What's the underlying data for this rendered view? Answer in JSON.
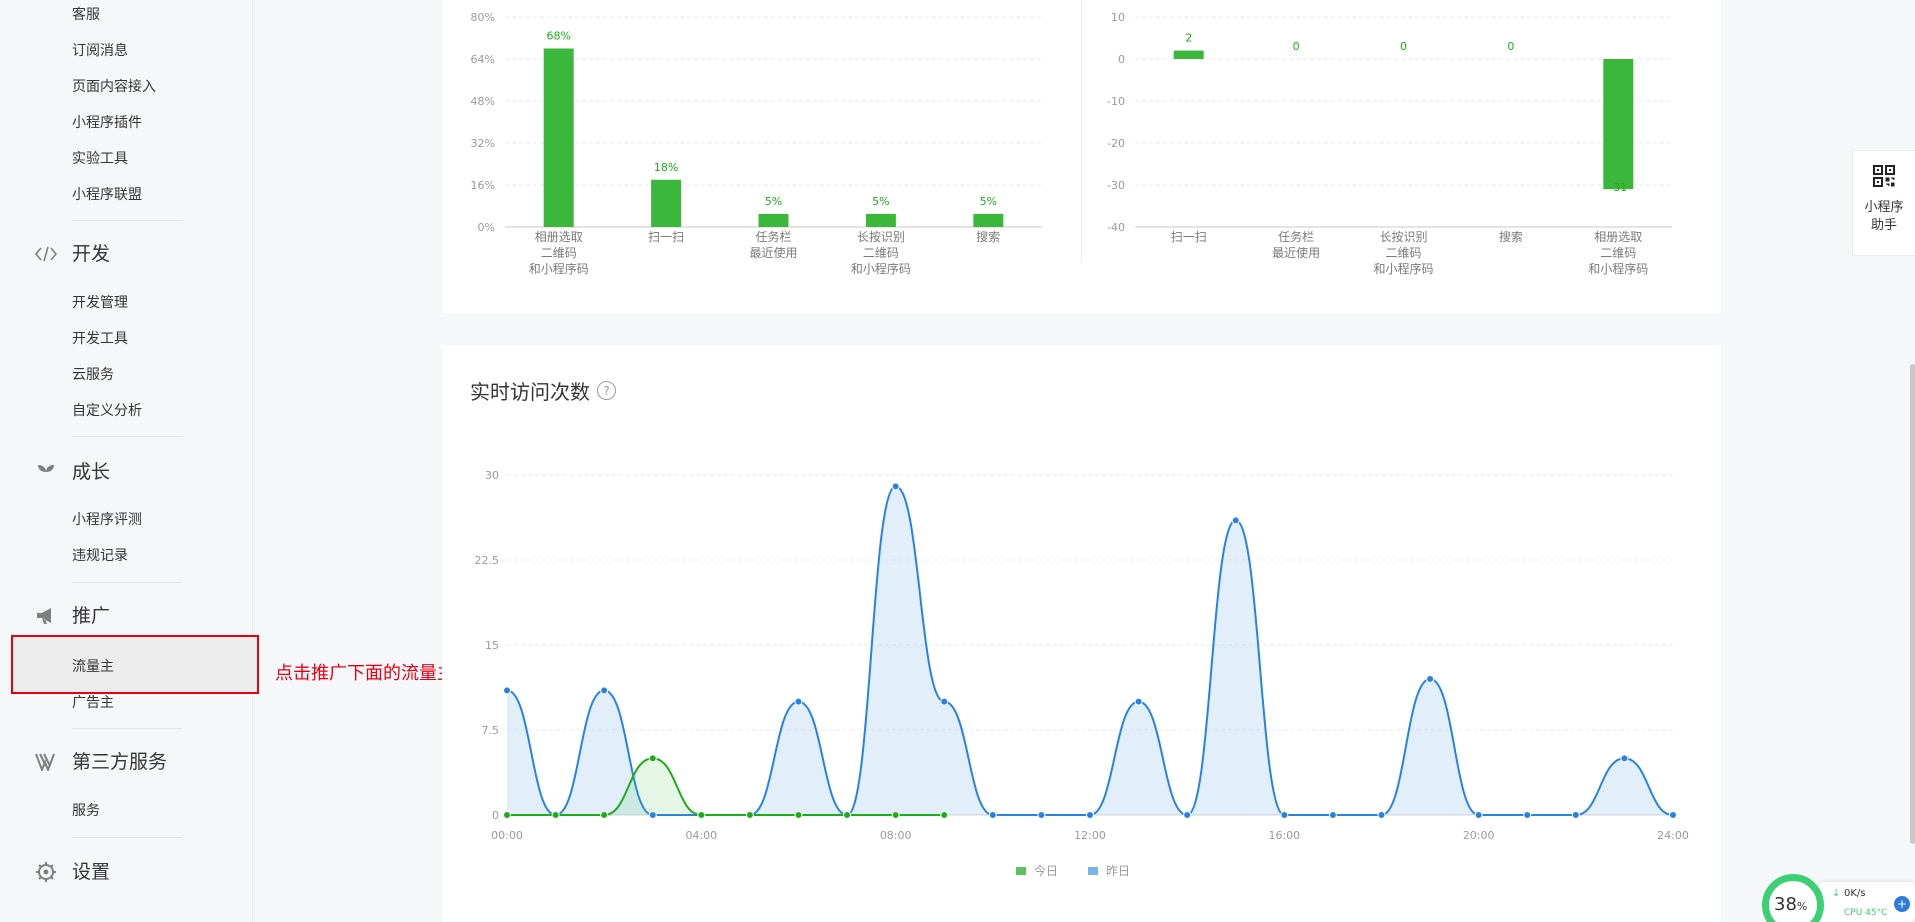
{
  "sidebar": {
    "items_top": [
      {
        "label": "客服"
      },
      {
        "label": "订阅消息"
      },
      {
        "label": "页面内容接入"
      },
      {
        "label": "小程序插件"
      },
      {
        "label": "实验工具"
      },
      {
        "label": "小程序联盟"
      }
    ],
    "groups": [
      {
        "label": "开发",
        "icon": "code-icon",
        "items": [
          {
            "label": "开发管理"
          },
          {
            "label": "开发工具"
          },
          {
            "label": "云服务"
          },
          {
            "label": "自定义分析"
          }
        ]
      },
      {
        "label": "成长",
        "icon": "sprout-icon",
        "items": [
          {
            "label": "小程序评测"
          },
          {
            "label": "违规记录"
          }
        ]
      },
      {
        "label": "推广",
        "icon": "megaphone-icon",
        "items": [
          {
            "label": "流量主"
          },
          {
            "label": "广告主"
          }
        ]
      },
      {
        "label": "第三方服务",
        "icon": "third-party-icon",
        "items": [
          {
            "label": "服务"
          }
        ]
      },
      {
        "label": "设置",
        "icon": "gear-icon",
        "items": []
      }
    ],
    "active_item": "流量主"
  },
  "annotation": {
    "text": "点击推广下面的流量主",
    "color": "#e60012"
  },
  "colors": {
    "accent_green": "#3bb83b",
    "today_green": "#1aad19",
    "yesterday_blue": "#2782e3",
    "yesterday_fill": "#e6f1fc"
  },
  "realtime": {
    "title": "实时访问次数",
    "help": "?"
  },
  "legend": [
    {
      "label": "今日",
      "color": "#5ac35a"
    },
    {
      "label": "昨日",
      "color": "#7ab5ee"
    }
  ],
  "helper": {
    "label": "小程序助手",
    "icon": "qrcode-icon"
  },
  "monitor": {
    "percent": "38",
    "unit": "%",
    "speed": "0K/s",
    "cpu": "CPU 45°C",
    "plus": "+"
  },
  "chart_data": [
    {
      "type": "bar",
      "categories": [
        [
          "相册选取",
          "二维码",
          "和小程序码"
        ],
        [
          "扫一扫"
        ],
        [
          "任务栏",
          "最近使用"
        ],
        [
          "长按识别",
          "二维码",
          "和小程序码"
        ],
        [
          "搜索"
        ]
      ],
      "values": [
        68,
        18,
        5,
        5,
        5
      ],
      "data_labels": [
        "68%",
        "18%",
        "5%",
        "5%",
        "5%"
      ],
      "yticks": [
        "0%",
        "16%",
        "32%",
        "48%",
        "64%",
        "80%"
      ],
      "ylim": [
        0,
        80
      ]
    },
    {
      "type": "bar",
      "categories": [
        [
          "扫一扫"
        ],
        [
          "任务栏",
          "最近使用"
        ],
        [
          "长按识别",
          "二维码",
          "和小程序码"
        ],
        [
          "搜索"
        ],
        [
          "相册选取",
          "二维码",
          "和小程序码"
        ]
      ],
      "values": [
        2,
        0,
        0,
        0,
        -31
      ],
      "data_labels": [
        "2",
        "0",
        "0",
        "0",
        "-31"
      ],
      "yticks": [
        "10",
        "0",
        "-10",
        "-20",
        "-30",
        "-40"
      ],
      "ylim": [
        -40,
        10
      ]
    },
    {
      "type": "area",
      "x_ticks": [
        "00:00",
        "04:00",
        "08:00",
        "12:00",
        "16:00",
        "20:00",
        "24:00"
      ],
      "yticks": [
        "0",
        "7.5",
        "15",
        "22.5",
        "30"
      ],
      "ylim": [
        0,
        30
      ],
      "series": [
        {
          "name": "今日",
          "x": [
            0,
            1,
            2,
            3,
            4,
            5,
            6,
            7,
            8,
            9
          ],
          "values": [
            0,
            0,
            0,
            5,
            0,
            0,
            0,
            0,
            0,
            0
          ]
        },
        {
          "name": "昨日",
          "x": [
            0,
            1,
            2,
            3,
            4,
            5,
            6,
            7,
            8,
            9,
            10,
            11,
            12,
            13,
            14,
            15,
            16,
            17,
            18,
            19,
            20,
            21,
            22,
            23,
            24
          ],
          "values": [
            11,
            0,
            11,
            0,
            0,
            0,
            10,
            0,
            29,
            10,
            0,
            0,
            0,
            10,
            0,
            26,
            0,
            0,
            0,
            12,
            0,
            0,
            0,
            5,
            0
          ]
        }
      ]
    }
  ]
}
